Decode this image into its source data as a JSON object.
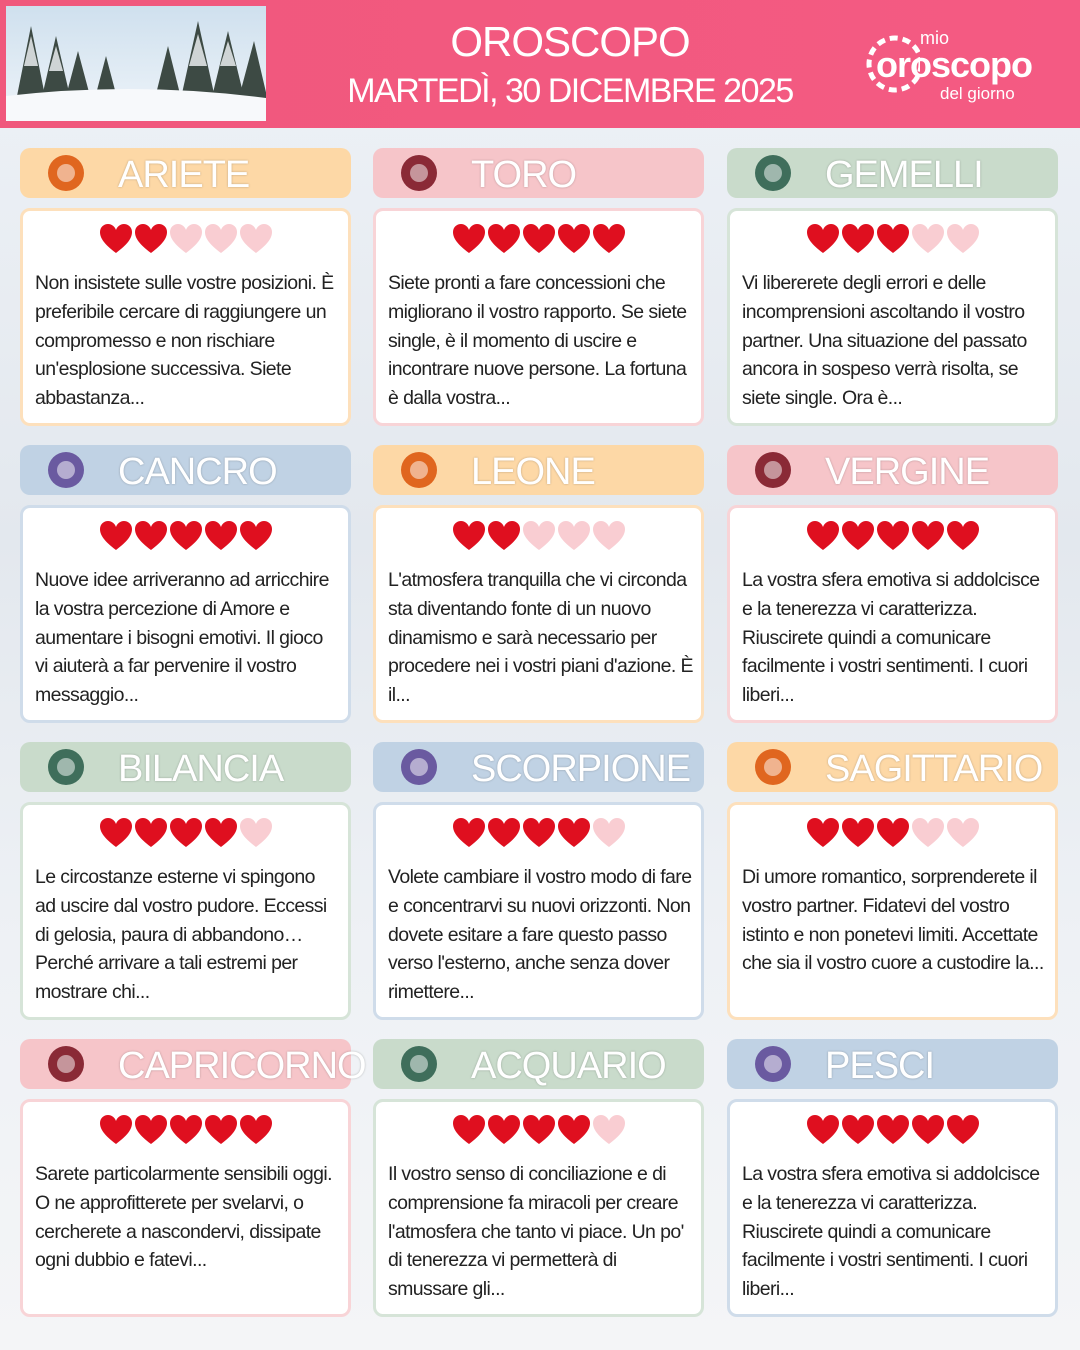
{
  "header": {
    "title": "OROSCOPO",
    "date": "MARTEDÌ, 30 DICEMBRE 2025",
    "logo": {
      "top": "mio",
      "main": "oroscopo",
      "bottom": "del giorno"
    }
  },
  "rating_max": 5,
  "signs": [
    {
      "name": "ARIETE",
      "rating": 2,
      "text": "Non insistete sulle vostre posizioni. È preferibile cercare di raggiungere un compromesso e non rischiare un'esplosione successiva. Siete abbastanza..."
    },
    {
      "name": "TORO",
      "rating": 5,
      "text": "Siete pronti a fare concessioni che migliorano il vostro rapporto. Se siete single, è il momento di uscire e incontrare nuove persone. La fortuna è dalla vostra..."
    },
    {
      "name": "GEMELLI",
      "rating": 3,
      "text": "Vi libererete degli errori e delle incomprensioni ascoltando il vostro partner. Una situazione del passato ancora in sospeso verrà risolta, se siete single. Ora è..."
    },
    {
      "name": "CANCRO",
      "rating": 5,
      "text": "Nuove idee arriveranno ad arricchire la vostra percezione di Amore e aumentare i bisogni emotivi. Il gioco vi aiuterà a far pervenire il vostro messaggio..."
    },
    {
      "name": "LEONE",
      "rating": 2,
      "text": "L'atmosfera tranquilla che vi circonda sta diventando fonte di un nuovo dinamismo e sarà necessario per procedere nei i vostri piani d'azione. È il..."
    },
    {
      "name": "VERGINE",
      "rating": 5,
      "text": "La vostra sfera emotiva si addolcisce e la tenerezza vi caratterizza. Riuscirete quindi a comunicare facilmente i vostri sentimenti. I cuori liberi..."
    },
    {
      "name": "BILANCIA",
      "rating": 4,
      "text": "Le circostanze esterne vi spingono ad uscire dal vostro pudore. Eccessi di gelosia, paura di abbandono… Perché arrivare a tali estremi per mostrare chi..."
    },
    {
      "name": "SCORPIONE",
      "rating": 4,
      "text": "Volete cambiare il vostro modo di fare e concentrarvi su nuovi orizzonti. Non dovete esitare a fare questo passo verso l'esterno, anche senza dover rimettere..."
    },
    {
      "name": "SAGITTARIO",
      "rating": 3,
      "text": "Di umore romantico, sorprenderete il vostro partner. Fidatevi del vostro istinto e non ponetevi limiti. Accettate che sia il vostro cuore a custodire la..."
    },
    {
      "name": "CAPRICORNO",
      "rating": 5,
      "text": "Sarete particolarmente sensibili oggi. O ne approfitterete per svelarvi, o cercherete a nascondervi, dissipate ogni dubbio e fatevi..."
    },
    {
      "name": "ACQUARIO",
      "rating": 4,
      "text": "Il vostro senso di conciliazione e di comprensione fa miracoli per creare l'atmosfera che tanto vi piace. Un po' di tenerezza vi permetterà di smussare gli..."
    },
    {
      "name": "PESCI",
      "rating": 5,
      "text": "La vostra sfera emotiva si addolcisce e la tenerezza vi caratterizza. Riuscirete quindi a comunicare facilmente i vostri sentimenti. I cuori liberi..."
    }
  ]
}
